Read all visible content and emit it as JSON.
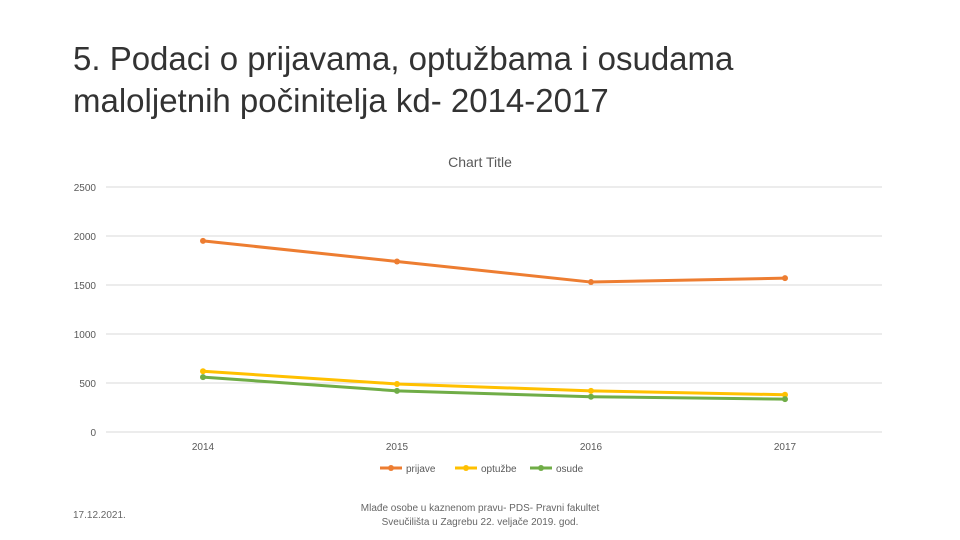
{
  "slide": {
    "title_line1": "5. Podaci o prijavama, optužbama i osudama",
    "title_line2": "maloljetnih počinitelja kd- 2014-2017",
    "footer_date": "17.12.2021.",
    "footer_source_line1": "Mlađe osobe u kaznenom pravu- PDS- Pravni fakultet",
    "footer_source_line2": "Sveučilišta u Zagrebu 22. veljače 2019. god."
  },
  "chart_data": {
    "type": "line",
    "title": "Chart Title",
    "categories": [
      "2014",
      "2015",
      "2016",
      "2017"
    ],
    "series": [
      {
        "name": "prijave",
        "values": [
          1950,
          1740,
          1530,
          1570
        ],
        "color": "#ED7D31"
      },
      {
        "name": "optužbe",
        "values": [
          620,
          490,
          420,
          380
        ],
        "color": "#FFC000"
      },
      {
        "name": "osude",
        "values": [
          560,
          420,
          360,
          335
        ],
        "color": "#70AD47"
      }
    ],
    "ylim": [
      0,
      2500
    ],
    "yticks": [
      0,
      500,
      1000,
      1500,
      2000,
      2500
    ],
    "grid": true,
    "legend": "bottom"
  }
}
